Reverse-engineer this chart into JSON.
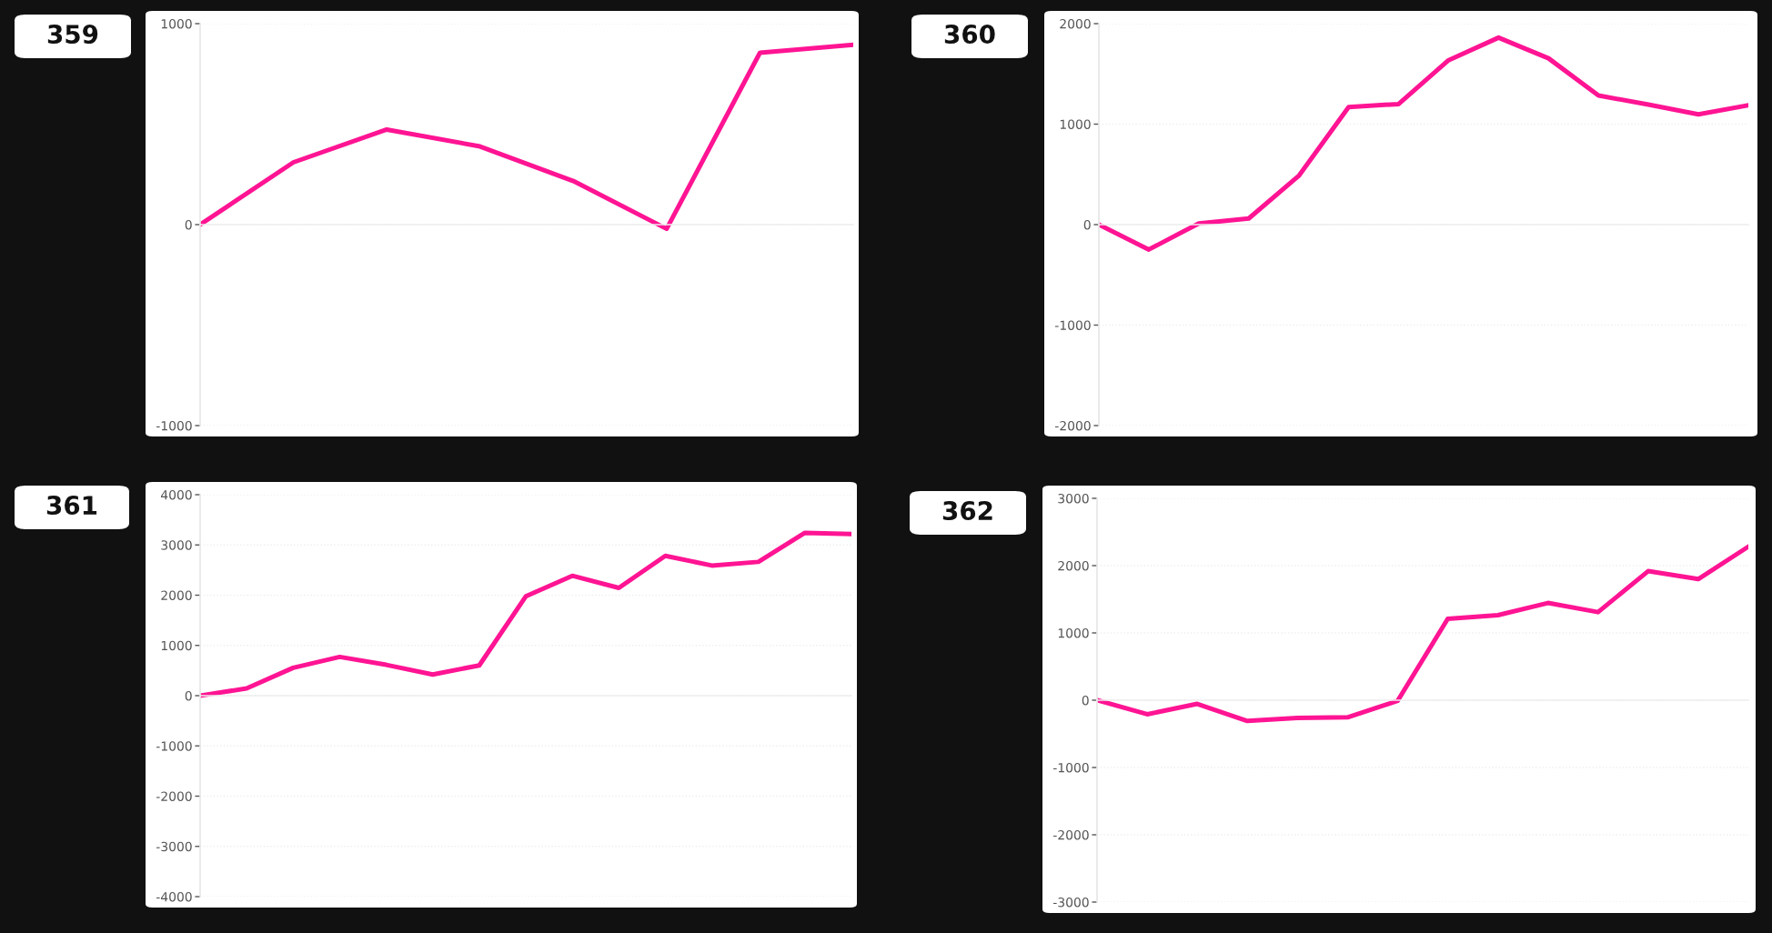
{
  "chart_data": [
    {
      "type": "line",
      "title": "359",
      "categories": [
        null,
        null,
        null,
        null,
        null,
        null,
        null,
        null
      ],
      "series": [
        {
          "color": "#ff1493",
          "values": [
            0,
            310,
            473,
            389,
            217,
            -21,
            855,
            895
          ]
        }
      ],
      "ylim": [
        -1000,
        1000
      ],
      "yticks": [
        -1000,
        0,
        1000
      ],
      "grid": "y",
      "tick_labels": "y"
    },
    {
      "type": "line",
      "title": "360",
      "categories": [
        null,
        null,
        null,
        null,
        null,
        null,
        null,
        null,
        null,
        null,
        null,
        null,
        null,
        null
      ],
      "series": [
        {
          "color": "#ff1493",
          "values": [
            0,
            -248,
            12,
            61,
            485,
            1170,
            1200,
            1636,
            1861,
            1655,
            1285,
            1194,
            1097,
            1188
          ]
        }
      ],
      "ylim": [
        -2000,
        2000
      ],
      "yticks": [
        -2000,
        -1000,
        0,
        1000,
        2000
      ],
      "grid": "y",
      "tick_labels": "y"
    },
    {
      "type": "line",
      "title": "361",
      "categories": [
        null,
        null,
        null,
        null,
        null,
        null,
        null,
        null,
        null,
        null,
        null,
        null,
        null,
        null,
        null
      ],
      "series": [
        {
          "color": "#ff1493",
          "values": [
            0,
            145,
            554,
            771,
            614,
            422,
            602,
            1976,
            2386,
            2145,
            2783,
            2590,
            2663,
            3241,
            3217
          ]
        }
      ],
      "ylim": [
        -4000,
        4000
      ],
      "yticks": [
        -4000,
        -3000,
        -2000,
        -1000,
        0,
        1000,
        2000,
        3000,
        4000
      ],
      "grid": "y",
      "tick_labels": "y"
    },
    {
      "type": "line",
      "title": "362",
      "categories": [
        null,
        null,
        null,
        null,
        null,
        null,
        null,
        null,
        null,
        null,
        null,
        null,
        null,
        null
      ],
      "series": [
        {
          "color": "#ff1493",
          "values": [
            0,
            -209,
            -55,
            -309,
            -264,
            -255,
            -9,
            1209,
            1264,
            1445,
            1309,
            1918,
            1800,
            2282
          ]
        }
      ],
      "ylim": [
        -3000,
        3000
      ],
      "yticks": [
        -3000,
        -2000,
        -1000,
        0,
        1000,
        2000,
        3000
      ],
      "grid": "y",
      "tick_labels": "y"
    }
  ]
}
